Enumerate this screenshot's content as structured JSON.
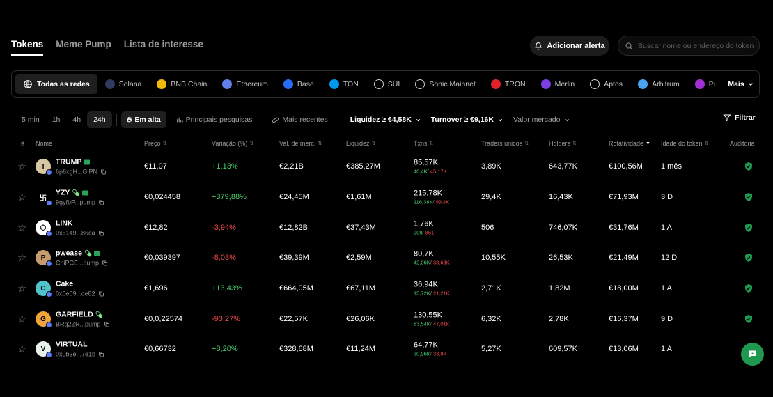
{
  "tabs": [
    {
      "label": "Tokens",
      "active": true
    },
    {
      "label": "Meme Pump",
      "active": false
    },
    {
      "label": "Lista de interesse",
      "active": false
    }
  ],
  "alert_button": "Adicionar alerta",
  "search": {
    "placeholder": "Buscar nome ou endereço do token"
  },
  "networks": [
    {
      "label": "Todas as redes",
      "icon": "globe-icon",
      "color": "#ffffff",
      "active": true
    },
    {
      "label": "Solana",
      "icon": "solana-icon",
      "color": "#2f3a5e",
      "active": false
    },
    {
      "label": "BNB Chain",
      "icon": "bnb-icon",
      "color": "#f0b90b",
      "active": false
    },
    {
      "label": "Ethereum",
      "icon": "ethereum-icon",
      "color": "#627eea",
      "active": false
    },
    {
      "label": "Base",
      "icon": "base-icon",
      "color": "#2a6cf6",
      "active": false
    },
    {
      "label": "TON",
      "icon": "ton-icon",
      "color": "#0098ea",
      "active": false
    },
    {
      "label": "SUI",
      "icon": "sui-icon",
      "color": "#ffffff",
      "active": false
    },
    {
      "label": "Sonic Mainnet",
      "icon": "sonic-icon",
      "color": "#ffffff",
      "active": false
    },
    {
      "label": "TRON",
      "icon": "tron-icon",
      "color": "#e3202e",
      "active": false
    },
    {
      "label": "Merlin",
      "icon": "merlin-icon",
      "color": "#7b3fe4",
      "active": false
    },
    {
      "label": "Aptos",
      "icon": "aptos-icon",
      "color": "#ffffff",
      "active": false
    },
    {
      "label": "Arbitrum",
      "icon": "arbitrum-icon",
      "color": "#4aa3ef",
      "active": false
    },
    {
      "label": "Pu",
      "icon": "polygon-icon",
      "color": "#a12fd6",
      "active": false
    }
  ],
  "more_label": "Mais",
  "timeframes": [
    {
      "label": "5 min",
      "active": false
    },
    {
      "label": "1h",
      "active": false
    },
    {
      "label": "4h",
      "active": false
    },
    {
      "label": "24h",
      "active": true
    }
  ],
  "feeds": [
    {
      "label": "Em alta",
      "icon": "flame-icon",
      "active": true
    },
    {
      "label": "Principais pesquisas",
      "icon": "trending-icon",
      "active": false
    },
    {
      "label": "Mais recentes",
      "icon": "pill-icon",
      "active": false
    }
  ],
  "dropdowns": [
    {
      "label": "Liquidez ≥ €4,58K",
      "muted": false
    },
    {
      "label": "Turnover ≥ €9,16K",
      "muted": false
    },
    {
      "label": "Valor mercado",
      "muted": true
    }
  ],
  "filter_label": "Filtrar",
  "columns": {
    "hash": "#",
    "name": "Nome",
    "price": "Preço",
    "change": "Variação (%)",
    "mcap": "Val. de merc.",
    "liquidity": "Liquidez",
    "txns": "Txns",
    "traders": "Traders únicos",
    "holders": "Holders",
    "turnover": "Rotatividade",
    "age": "Idade do token",
    "audit": "Auditoria"
  },
  "colors": {
    "positive": "#4cd170",
    "negative": "#f2494f",
    "accent": "#1f9850"
  },
  "tokens": [
    {
      "name": "TRUMP",
      "addr": "6p6xgH...GiPN",
      "price": "€11,07",
      "change": "+1,13%",
      "dir": "pos",
      "mcap": "€2,21B",
      "liquidity": "€385,27M",
      "txns": "85,57K",
      "buys": "40,4K",
      "sells": "45,17K",
      "traders": "3,89K",
      "holders": "643,77K",
      "turnover": "€100,56M",
      "age": "1 mês",
      "avatar_color": "#d9c7a3",
      "avatar_text": "T",
      "audit": true
    },
    {
      "name": "YZY",
      "addr": "9gyfbP...pump",
      "price": "€0,024458",
      "change": "+379,88%",
      "dir": "pos",
      "mcap": "€24,45M",
      "liquidity": "€1,61M",
      "txns": "215,78K",
      "buys": "116,38K",
      "sells": "99,4K",
      "traders": "29,4K",
      "holders": "16,43K",
      "turnover": "€71,93M",
      "age": "3 D",
      "avatar_color": "#000000",
      "avatar_text": "卐",
      "audit": true
    },
    {
      "name": "LINK",
      "addr": "0x5149...86ca",
      "price": "€12,82",
      "change": "-3,94%",
      "dir": "neg",
      "mcap": "€12,82B",
      "liquidity": "€37,43M",
      "txns": "1,76K",
      "buys": "909",
      "sells": "851",
      "traders": "506",
      "holders": "746,07K",
      "turnover": "€31,76M",
      "age": "1 A",
      "avatar_color": "#ffffff",
      "avatar_text": "⬡",
      "audit": true
    },
    {
      "name": "pwease",
      "addr": "CniPCE...pump",
      "price": "€0,039397",
      "change": "-8,03%",
      "dir": "neg",
      "mcap": "€39,39M",
      "liquidity": "€2,59M",
      "txns": "80,7K",
      "buys": "42,06K",
      "sells": "38,63K",
      "traders": "10,55K",
      "holders": "26,53K",
      "turnover": "€21,49M",
      "age": "12 D",
      "avatar_color": "#c89b6e",
      "avatar_text": "P",
      "audit": true
    },
    {
      "name": "Cake",
      "addr": "0x0e09...ce82",
      "price": "€1,696",
      "change": "+13,43%",
      "dir": "pos",
      "mcap": "€664,05M",
      "liquidity": "€67,11M",
      "txns": "36,94K",
      "buys": "15,72K",
      "sells": "21,21K",
      "traders": "2,71K",
      "holders": "1,82M",
      "turnover": "€18,00M",
      "age": "1 A",
      "avatar_color": "#4fc3c9",
      "avatar_text": "C",
      "audit": true
    },
    {
      "name": "GARFIELD",
      "addr": "BRq2ZR...pump",
      "price": "€0,0,22574",
      "change": "-93,27%",
      "dir": "neg",
      "mcap": "€22,57K",
      "liquidity": "€26,06K",
      "txns": "130,55K",
      "buys": "83,54K",
      "sells": "47,01K",
      "traders": "6,32K",
      "holders": "2,78K",
      "turnover": "€16,37M",
      "age": "9 D",
      "avatar_color": "#f2a33a",
      "avatar_text": "G",
      "audit": true
    },
    {
      "name": "VIRTUAL",
      "addr": "0x0b3e...7e1b",
      "price": "€0,66732",
      "change": "+8,20%",
      "dir": "pos",
      "mcap": "€328,68M",
      "liquidity": "€11,24M",
      "txns": "64,77K",
      "buys": "30,96K",
      "sells": "33,8K",
      "traders": "5,27K",
      "holders": "609,57K",
      "turnover": "€13,06M",
      "age": "1 A",
      "avatar_color": "#e8f0ea",
      "avatar_text": "V",
      "audit": false
    }
  ]
}
